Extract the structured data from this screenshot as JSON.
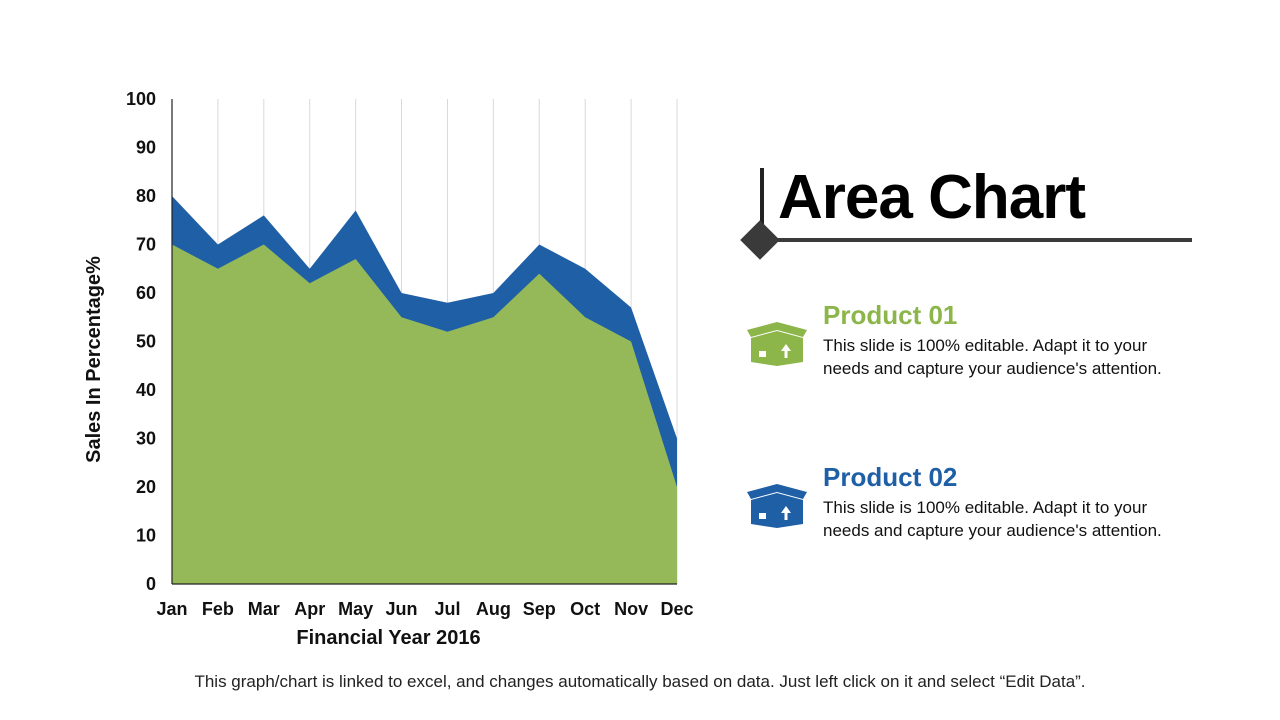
{
  "slide": {
    "title": "Area Chart",
    "footer": "This graph/chart is linked to excel, and changes automatically based on data. Just left click on it and select “Edit Data”."
  },
  "products": [
    {
      "name": "Product 01",
      "description": "This slide is 100% editable. Adapt it to your needs and capture your audience's attention.",
      "color": "#8CB54A",
      "icon": "box-icon"
    },
    {
      "name": "Product 02",
      "description": "This slide is 100% editable. Adapt it to your needs and capture your audience's attention.",
      "color": "#1F5FA6",
      "icon": "box-icon"
    }
  ],
  "chart_data": {
    "type": "area",
    "stacked": false,
    "categories": [
      "Jan",
      "Feb",
      "Mar",
      "Apr",
      "May",
      "Jun",
      "Jul",
      "Aug",
      "Sep",
      "Oct",
      "Nov",
      "Dec"
    ],
    "series": [
      {
        "name": "Product 02",
        "color": "#1F5FA6",
        "values": [
          80,
          70,
          76,
          65,
          77,
          60,
          58,
          60,
          70,
          65,
          57,
          30
        ]
      },
      {
        "name": "Product 01",
        "color": "#95B958",
        "values": [
          70,
          65,
          70,
          62,
          67,
          55,
          52,
          55,
          64,
          55,
          50,
          20
        ]
      }
    ],
    "xlabel": "Financial Year 2016",
    "ylabel": "Sales In Percentage%",
    "ylim": [
      0,
      100
    ],
    "yticks": [
      0,
      10,
      20,
      30,
      40,
      50,
      60,
      70,
      80,
      90,
      100
    ],
    "grid": "vertical"
  }
}
